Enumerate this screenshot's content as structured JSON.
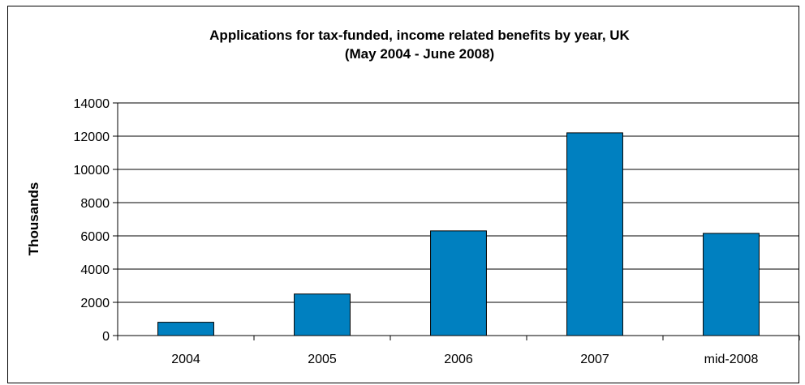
{
  "chart_data": {
    "type": "bar",
    "title": "Applications for tax-funded, income related benefits by year, UK",
    "subtitle": "(May 2004 - June 2008)",
    "xlabel": "",
    "ylabel": "Thousands",
    "categories": [
      "2004",
      "2005",
      "2006",
      "2007",
      "mid-2008"
    ],
    "values": [
      800,
      2500,
      6300,
      12200,
      6150
    ],
    "ylim": [
      0,
      14000
    ],
    "yticks": [
      0,
      2000,
      4000,
      6000,
      8000,
      10000,
      12000,
      14000
    ],
    "grid": true,
    "legend": "none",
    "colors": {
      "bar": "#0080C0",
      "bar_border": "#000000",
      "grid": "#000000"
    }
  }
}
